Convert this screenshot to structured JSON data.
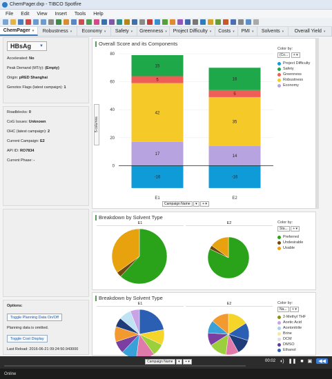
{
  "window": {
    "title": "ChemPager.dxp - TIBCO Spotfire"
  },
  "menu": [
    "File",
    "Edit",
    "View",
    "Insert",
    "Tools",
    "Help"
  ],
  "tabs": [
    {
      "label": "ChemPager",
      "active": true
    },
    {
      "label": "Robustness"
    },
    {
      "label": "Economy"
    },
    {
      "label": "Safety"
    },
    {
      "label": "Greenness"
    },
    {
      "label": "Project Difficulty"
    },
    {
      "label": "Costs"
    },
    {
      "label": "PMI"
    },
    {
      "label": "Solvents"
    },
    {
      "label": "Overall Yield"
    }
  ],
  "left": {
    "selector": "HBsAg",
    "info1": [
      {
        "label": "Accelerated:",
        "value": "No"
      },
      {
        "label": "Peak Demand (MT/y):",
        "value": "(Empty)"
      },
      {
        "label": "Origin:",
        "value": "pRED Shanghai"
      },
      {
        "label": "Genotox Flags (latest campaign):",
        "value": "1"
      }
    ],
    "info2": [
      {
        "label": "Roadblocks:",
        "value": "0"
      },
      {
        "label": "CoG Issues:",
        "value": "Unknown"
      },
      {
        "label": "OHC (latest campaign):",
        "value": "2"
      },
      {
        "label": "Current Campaign:",
        "value": "E2"
      },
      {
        "label": "API ID:",
        "value": "RO7834"
      },
      {
        "label": "Current Phase:",
        "value": "-"
      }
    ],
    "options_title": "Options:",
    "btn_planning": "Toggle Planning Data On/Off",
    "planning_note": "Planning data is omitted.",
    "btn_cost": "Toggle Cost Display",
    "last_reload": "Last Reload: 2016-06-21 09:24:50.943000"
  },
  "bar_chart": {
    "title": "Overall Score and its Components",
    "color_by_label": "Color by:",
    "color_by_value": "(Co...",
    "x_axis_selector": "Campaign Name",
    "y_axis_selector": "5 columns",
    "legend": [
      {
        "name": "Project Difficulty",
        "color": "#0f9ad8"
      },
      {
        "name": "Safety",
        "color": "#1fa84a"
      },
      {
        "name": "Greenness",
        "color": "#ef5d57"
      },
      {
        "name": "Robustness",
        "color": "#f5c928"
      },
      {
        "name": "Economy",
        "color": "#b7a3df"
      }
    ],
    "yticks": [
      "80",
      "60",
      "40",
      "20",
      "0"
    ],
    "categories": [
      "E1",
      "E2"
    ]
  },
  "chart_data": [
    {
      "type": "bar",
      "title": "Overall Score and its Components",
      "xlabel": "Campaign Name",
      "categories": [
        "E1",
        "E2"
      ],
      "stacked": true,
      "ylim": [
        -20,
        80
      ],
      "series": [
        {
          "name": "Project Difficulty",
          "color": "#0f9ad8",
          "values": [
            -16,
            -16
          ]
        },
        {
          "name": "Economy",
          "color": "#b7a3df",
          "values": [
            17,
            14
          ]
        },
        {
          "name": "Robustness",
          "color": "#f5c928",
          "values": [
            42,
            35
          ]
        },
        {
          "name": "Greenness",
          "color": "#ef5d57",
          "values": [
            5,
            5
          ]
        },
        {
          "name": "Safety",
          "color": "#1fa84a",
          "values": [
            15,
            16
          ]
        }
      ]
    },
    {
      "type": "pie",
      "title": "Breakdown by Solvent Type",
      "panels": [
        "E1",
        "E2"
      ],
      "series": [
        {
          "name": "E1",
          "labels": [
            "Preferred",
            "Undesirable",
            "Usable"
          ],
          "values": [
            0.62,
            0.03,
            0.35
          ],
          "colors": [
            "#2aa31a",
            "#6f4a0f",
            "#e7a20e"
          ]
        },
        {
          "name": "E2",
          "labels": [
            "Preferred",
            "Undesirable",
            "Usable"
          ],
          "values": [
            0.82,
            0.03,
            0.15
          ],
          "colors": [
            "#2aa31a",
            "#6f4a0f",
            "#e7a20e"
          ]
        }
      ]
    },
    {
      "type": "pie",
      "title": "Breakdown by Solvent Type",
      "panels": [
        "E1",
        "E2"
      ],
      "series": [
        {
          "name": "E1",
          "values": [
            0.22,
            0.1,
            0.08,
            0.12,
            0.1,
            0.08,
            0.1,
            0.06,
            0.08,
            0.06
          ],
          "colors": [
            "#2b5fb4",
            "#f5d52a",
            "#9ccf3c",
            "#e07aa8",
            "#3aa0d8",
            "#7a3fa0",
            "#f29a2f",
            "#1f3d7a",
            "#bfe3f5",
            "#c9a3e6"
          ]
        },
        {
          "name": "E2",
          "values": [
            0.16,
            0.14,
            0.12,
            0.1,
            0.14,
            0.1,
            0.1,
            0.14
          ],
          "colors": [
            "#f5d52a",
            "#2b5fb4",
            "#1f3d7a",
            "#e07aa8",
            "#9ccf3c",
            "#7a3fa0",
            "#3aa0d8",
            "#f29a2f"
          ]
        }
      ]
    }
  ],
  "pie1": {
    "title": "Breakdown by Solvent Type",
    "color_by_label": "Color by:",
    "color_by_value": "Sta...",
    "panels": [
      "E1",
      "E2"
    ],
    "legend": [
      {
        "name": "Preferred",
        "color": "#2aa31a"
      },
      {
        "name": "Undesirable",
        "color": "#6f4a0f"
      },
      {
        "name": "Usable",
        "color": "#e7a20e"
      }
    ]
  },
  "pie2": {
    "title": "Breakdown by Solvent Type",
    "color_by_label": "Color by:",
    "color_by_value": "Na...",
    "panels": [
      "E1",
      "E2"
    ],
    "legend": [
      {
        "name": "2-Methyl THF",
        "color": "#8c8c1a"
      },
      {
        "name": "Acetic Acid",
        "color": "#c9a3e6"
      },
      {
        "name": "Acetonitrile",
        "color": "#a8cfe8"
      },
      {
        "name": "Brine",
        "color": "#f6e7a8"
      },
      {
        "name": "DCM",
        "color": "#dcdcdc"
      },
      {
        "name": "DMSO",
        "color": "#5a3d9a"
      },
      {
        "name": "Ethanol",
        "color": "#2b5fb4"
      }
    ],
    "x_axis_selector": "Campaign Name"
  },
  "player": {
    "time": "00:02"
  },
  "status": {
    "text": "Online"
  }
}
